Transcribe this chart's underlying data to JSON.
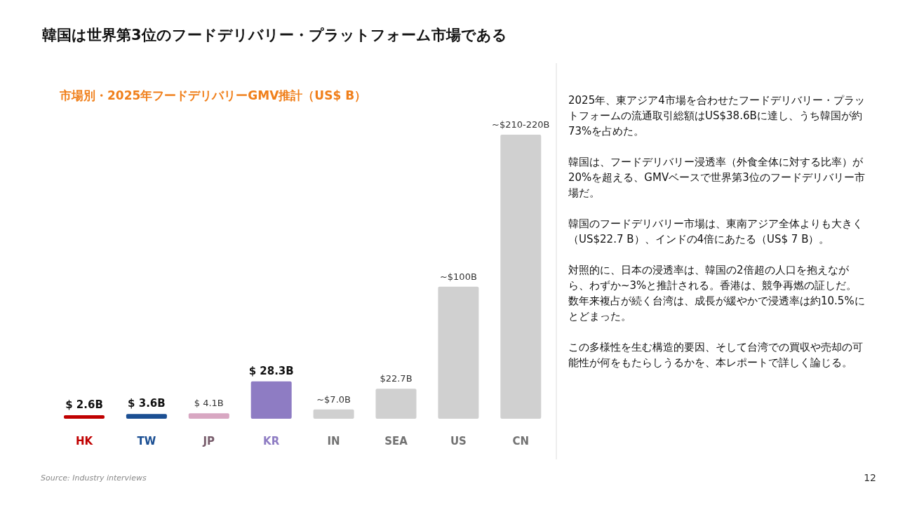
{
  "chart_data": {
    "type": "bar",
    "title": "韓国は世界第3位のフードデリバリー・プラットフォーム市場である",
    "subtitle": "市場別・2025年フードデリバリーGMV推計（US$ B）",
    "categories": [
      "HK",
      "TW",
      "JP",
      "KR",
      "IN",
      "SEA",
      "US",
      "CN"
    ],
    "values": [
      2.6,
      3.6,
      4.1,
      28.3,
      7.0,
      22.7,
      100,
      215
    ],
    "colors": [
      "#c00000",
      "#1b4f93",
      "#d8a7c2",
      "#8e7cc3",
      "#d0d0d0",
      "#d0d0d0",
      "#d0d0d0",
      "#d0d0d0"
    ],
    "value_labels": [
      "$ 2.6B",
      "$ 3.6B",
      "$ 4.1B",
      "$ 28.3B",
      "~$7.0B",
      "$22.7B",
      "~$100B",
      "~$210-220B"
    ],
    "annotations": [
      "2025年、東アジア4市場を合わせたフードデリバリー・プラットフォームの流通取引総額はUS$38.6Bに達し、うち韓国が約73%を占めた。",
      "韓国は、フードデリバリー浸透率（外食全体に対する比率）が20%を超える、GMVベースで世界第3位のフードデリバリー市場だ。",
      "韓国のフードデリバリー市場は、東南アジア全体よりも大きく（US$22.7 B）、インドの4倍にあたる（US$ 7 B）。",
      "対照的に、日本の浸透率は、韓国の2倍超の人口を抱えながら、わずか~3%と推計される。香港は、競争再燃の証しだ。数年来複占が続く台湾は、成長が緩やかで浸透率は約10.5%にとどまった。",
      "この多様性を生む構造的要因、そして台湾での買収や売却の可能性が何をもたらしうるかを、本レポートで詳しく論じる。",
      "Source: Industry interviews",
      "12"
    ],
    "data_labels": false
  }
}
